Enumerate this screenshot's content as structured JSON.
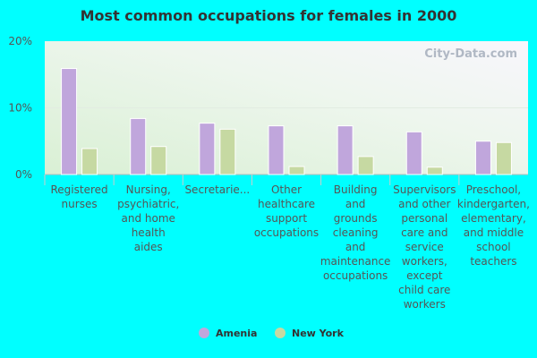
{
  "chart_data": {
    "type": "bar",
    "title": "Most common occupations for females in 2000",
    "categories": [
      [
        "Registered",
        "nurses"
      ],
      [
        "Nursing,",
        "psychiatric,",
        "and home",
        "health",
        "aides"
      ],
      [
        "Secretarie..."
      ],
      [
        "Other",
        "healthcare",
        "support",
        "occupations"
      ],
      [
        "Building",
        "and",
        "grounds",
        "cleaning",
        "and",
        "maintenance",
        "occupations"
      ],
      [
        "Supervisors",
        "and other",
        "personal",
        "care and",
        "service",
        "workers,",
        "except",
        "child care",
        "workers"
      ],
      [
        "Preschool,",
        "kindergarten,",
        "elementary,",
        "and middle",
        "school",
        "teachers"
      ]
    ],
    "series": [
      {
        "name": "Amenia",
        "color": "#c0a6dc",
        "values": [
          15.9,
          8.4,
          7.7,
          7.3,
          7.3,
          6.4,
          5.0
        ]
      },
      {
        "name": "New York",
        "color": "#c6d9a2",
        "values": [
          3.9,
          4.2,
          6.8,
          1.2,
          2.7,
          1.1,
          4.8
        ]
      }
    ],
    "yticks": [
      "0%",
      "10%",
      "20%"
    ],
    "ylim": [
      0,
      20
    ],
    "legend_position": "bottom",
    "watermark": "City-Data.com"
  }
}
